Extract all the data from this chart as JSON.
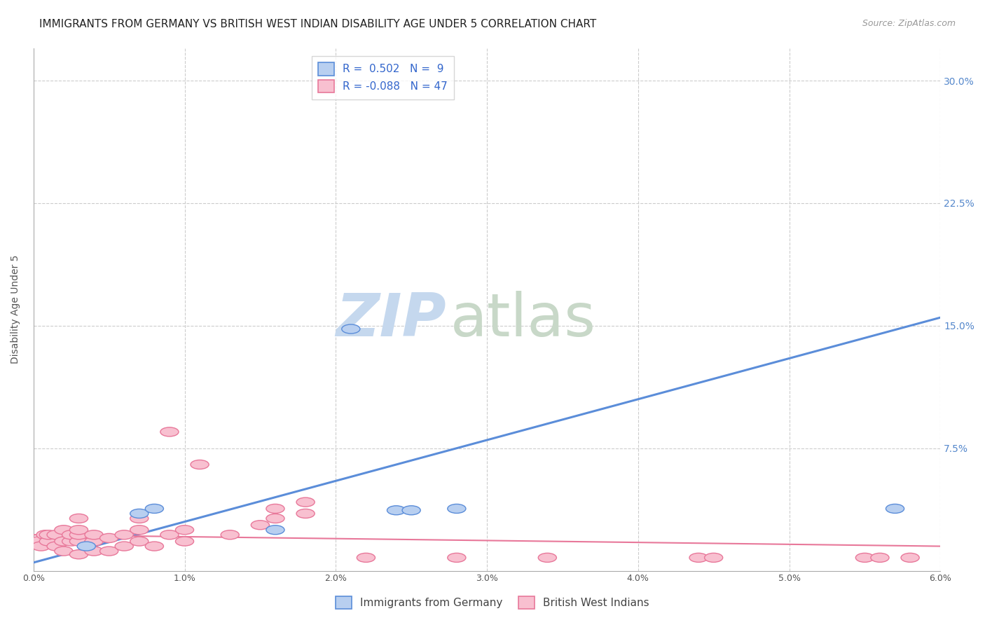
{
  "title": "IMMIGRANTS FROM GERMANY VS BRITISH WEST INDIAN DISABILITY AGE UNDER 5 CORRELATION CHART",
  "source": "Source: ZipAtlas.com",
  "ylabel": "Disability Age Under 5",
  "xlim": [
    0.0,
    0.06
  ],
  "ylim": [
    0.0,
    0.32
  ],
  "xtick_labels": [
    "0.0%",
    "1.0%",
    "2.0%",
    "3.0%",
    "4.0%",
    "5.0%",
    "6.0%"
  ],
  "xtick_vals": [
    0.0,
    0.01,
    0.02,
    0.03,
    0.04,
    0.05,
    0.06
  ],
  "ytick_labels": [
    "7.5%",
    "15.0%",
    "22.5%",
    "30.0%"
  ],
  "ytick_vals": [
    0.075,
    0.15,
    0.225,
    0.3
  ],
  "grid_color": "#cccccc",
  "background_color": "#ffffff",
  "blue_color": "#5b8dd9",
  "blue_fill": "#b8cff0",
  "pink_color": "#e8789a",
  "pink_fill": "#f8c0d0",
  "legend_blue_R": "0.502",
  "legend_blue_N": "9",
  "legend_pink_R": "-0.088",
  "legend_pink_N": "47",
  "legend_label_blue": "Immigrants from Germany",
  "legend_label_pink": "British West Indians",
  "blue_scatter_x": [
    0.0035,
    0.007,
    0.008,
    0.016,
    0.021,
    0.024,
    0.025,
    0.028,
    0.057
  ],
  "blue_scatter_y": [
    0.015,
    0.035,
    0.038,
    0.025,
    0.148,
    0.037,
    0.037,
    0.038,
    0.038
  ],
  "pink_scatter_x": [
    0.0003,
    0.0005,
    0.0008,
    0.001,
    0.001,
    0.0015,
    0.0015,
    0.002,
    0.002,
    0.002,
    0.0025,
    0.0025,
    0.003,
    0.003,
    0.003,
    0.003,
    0.003,
    0.004,
    0.004,
    0.004,
    0.005,
    0.005,
    0.006,
    0.006,
    0.007,
    0.007,
    0.007,
    0.008,
    0.009,
    0.009,
    0.01,
    0.01,
    0.011,
    0.013,
    0.015,
    0.016,
    0.016,
    0.018,
    0.018,
    0.022,
    0.028,
    0.034,
    0.044,
    0.045,
    0.055,
    0.056,
    0.058
  ],
  "pink_scatter_y": [
    0.018,
    0.015,
    0.022,
    0.018,
    0.022,
    0.015,
    0.022,
    0.012,
    0.018,
    0.025,
    0.018,
    0.022,
    0.01,
    0.018,
    0.022,
    0.025,
    0.032,
    0.012,
    0.018,
    0.022,
    0.012,
    0.02,
    0.015,
    0.022,
    0.018,
    0.025,
    0.032,
    0.015,
    0.022,
    0.085,
    0.018,
    0.025,
    0.065,
    0.022,
    0.028,
    0.032,
    0.038,
    0.035,
    0.042,
    0.008,
    0.008,
    0.008,
    0.008,
    0.008,
    0.008,
    0.008,
    0.008
  ],
  "blue_line_x0": 0.0,
  "blue_line_x1": 0.06,
  "blue_line_y0": 0.005,
  "blue_line_y1": 0.155,
  "pink_line_x0": 0.0,
  "pink_line_x1": 0.06,
  "pink_line_y0": 0.022,
  "pink_line_y1": 0.015,
  "watermark_zip": "ZIP",
  "watermark_atlas": "atlas",
  "watermark_zip_color": "#c5d8ee",
  "watermark_atlas_color": "#c8d8c8",
  "title_fontsize": 11,
  "source_fontsize": 9,
  "axis_label_fontsize": 10,
  "tick_fontsize": 9,
  "legend_fontsize": 11
}
